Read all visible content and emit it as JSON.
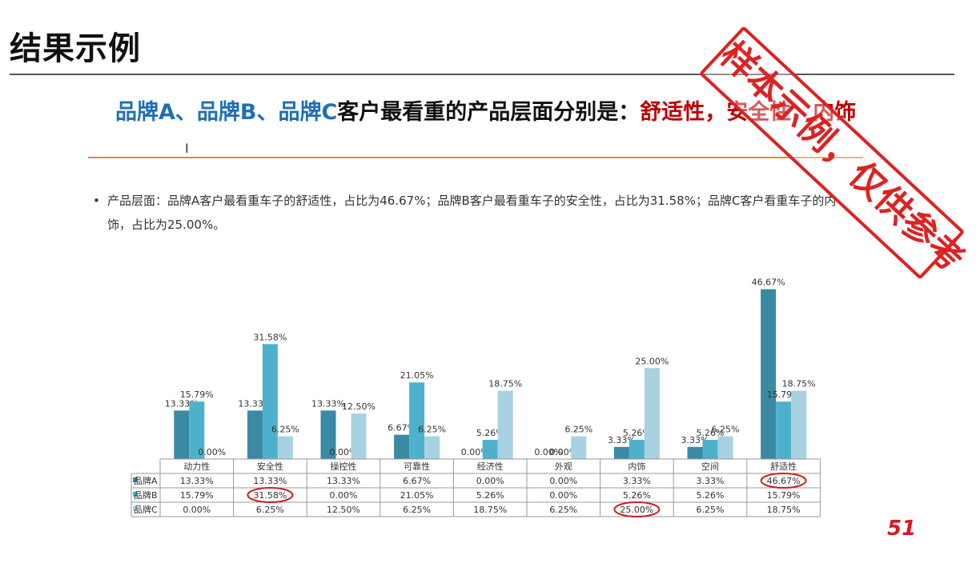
{
  "page": {
    "title": "结果示例",
    "headline": {
      "blue_part": "品牌A、品牌B、品牌C",
      "black_part": "客户最看重的产品层面分别是：",
      "red_part": "舒适性，安全性，内饰"
    },
    "cursor_glyph": "I",
    "bullet": "产品层面：品牌A客户最看重车子的舒适性，占比为46.67%；品牌B客户最看重车子的安全性，占比为31.58%；品牌C客户看重车子的内饰，占比为25.00%。",
    "stamp_text": "样本示例，仅供参考",
    "page_number": "51"
  },
  "colors": {
    "brand_a": "#3a8aa3",
    "brand_b": "#4eb1cc",
    "brand_c": "#a8d2e1",
    "highlight": "#cc2222"
  },
  "chart_data": {
    "type": "bar",
    "categories": [
      "动力性",
      "安全性",
      "操控性",
      "可靠性",
      "经济性",
      "外观",
      "内饰",
      "空间",
      "舒适性"
    ],
    "series": [
      {
        "name": "品牌A",
        "values": [
          13.33,
          13.33,
          13.33,
          6.67,
          0.0,
          0.0,
          3.33,
          3.33,
          46.67
        ]
      },
      {
        "name": "品牌B",
        "values": [
          15.79,
          31.58,
          0.0,
          21.05,
          5.26,
          0.0,
          5.26,
          5.26,
          15.79
        ]
      },
      {
        "name": "品牌C",
        "values": [
          0.0,
          6.25,
          12.5,
          6.25,
          18.75,
          6.25,
          25.0,
          6.25,
          18.75
        ]
      }
    ],
    "table_values": [
      [
        "13.33%",
        "13.33%",
        "13.33%",
        "6.67%",
        "0.00%",
        "0.00%",
        "3.33%",
        "3.33%",
        "46.67%"
      ],
      [
        "15.79%",
        "31.58%",
        "0.00%",
        "21.05%",
        "5.26%",
        "0.00%",
        "5.26%",
        "5.26%",
        "15.79%"
      ],
      [
        "0.00%",
        "6.25%",
        "12.50%",
        "6.25%",
        "18.75%",
        "6.25%",
        "25.00%",
        "6.25%",
        "18.75%"
      ]
    ],
    "highlighted_cells": [
      {
        "series": 0,
        "category": 8
      },
      {
        "series": 1,
        "category": 1
      },
      {
        "series": 2,
        "category": 6
      }
    ],
    "grid": false,
    "legend": "data-table-below",
    "ylim": [
      0,
      50
    ]
  }
}
